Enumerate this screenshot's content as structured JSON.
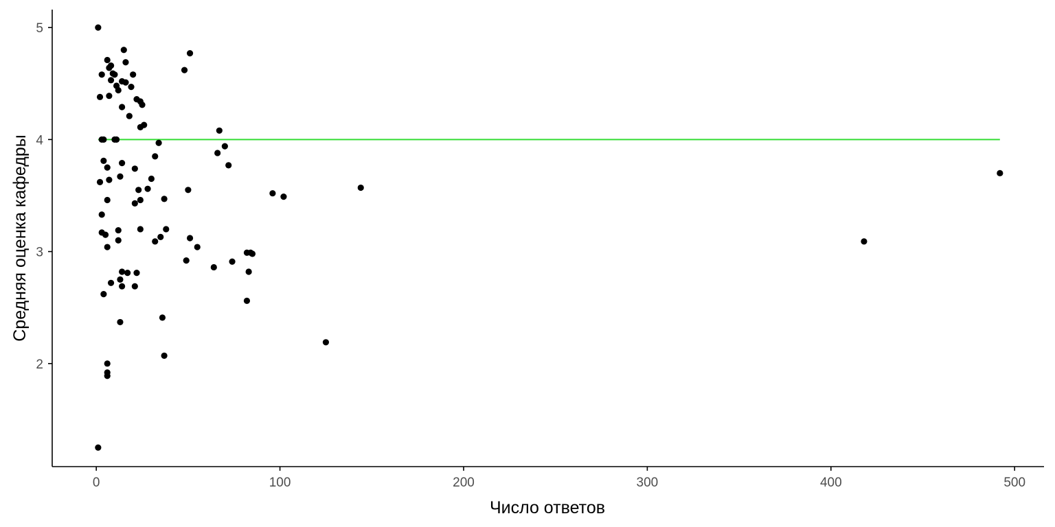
{
  "chart_data": {
    "type": "scatter",
    "xlabel": "Число ответов",
    "ylabel": "Средняя оценка кафедры",
    "xlim": [
      -24,
      516
    ],
    "ylim": [
      1.08,
      5.16
    ],
    "x_ticks": [
      0,
      100,
      200,
      300,
      400,
      500
    ],
    "y_ticks": [
      2,
      3,
      4,
      5
    ],
    "grid": false,
    "legend": "none",
    "point_color": "#000000",
    "reference_line": {
      "y": 4,
      "x_from": 1,
      "x_to": 492,
      "color": "#33dd33"
    },
    "points": [
      [
        1,
        5.0
      ],
      [
        1,
        1.25
      ],
      [
        2,
        4.38
      ],
      [
        2,
        3.62
      ],
      [
        3,
        4.0
      ],
      [
        4,
        4.0
      ],
      [
        3,
        4.58
      ],
      [
        3,
        3.33
      ],
      [
        3,
        3.17
      ],
      [
        4,
        3.81
      ],
      [
        4,
        2.62
      ],
      [
        5,
        3.15
      ],
      [
        6,
        4.71
      ],
      [
        6,
        3.75
      ],
      [
        6,
        3.04
      ],
      [
        6,
        3.46
      ],
      [
        6,
        2.0
      ],
      [
        6,
        1.92
      ],
      [
        6,
        1.89
      ],
      [
        7,
        4.64
      ],
      [
        7,
        4.39
      ],
      [
        7,
        3.64
      ],
      [
        8,
        4.66
      ],
      [
        8,
        4.53
      ],
      [
        8,
        2.72
      ],
      [
        9,
        4.59
      ],
      [
        10,
        4.58
      ],
      [
        10,
        4.0
      ],
      [
        11,
        4.0
      ],
      [
        11,
        4.48
      ],
      [
        12,
        4.44
      ],
      [
        12,
        3.19
      ],
      [
        12,
        3.1
      ],
      [
        13,
        3.67
      ],
      [
        13,
        2.75
      ],
      [
        13,
        2.37
      ],
      [
        14,
        4.52
      ],
      [
        14,
        4.29
      ],
      [
        14,
        3.79
      ],
      [
        14,
        2.82
      ],
      [
        14,
        2.69
      ],
      [
        15,
        4.8
      ],
      [
        16,
        4.69
      ],
      [
        16,
        4.51
      ],
      [
        17,
        2.81
      ],
      [
        18,
        4.21
      ],
      [
        19,
        4.47
      ],
      [
        20,
        4.58
      ],
      [
        21,
        3.74
      ],
      [
        21,
        3.43
      ],
      [
        21,
        2.69
      ],
      [
        22,
        4.36
      ],
      [
        22,
        2.81
      ],
      [
        23,
        3.55
      ],
      [
        24,
        4.34
      ],
      [
        24,
        4.11
      ],
      [
        24,
        3.46
      ],
      [
        24,
        3.2
      ],
      [
        25,
        4.31
      ],
      [
        26,
        4.13
      ],
      [
        28,
        3.56
      ],
      [
        30,
        3.65
      ],
      [
        32,
        3.85
      ],
      [
        32,
        3.09
      ],
      [
        34,
        3.97
      ],
      [
        35,
        3.13
      ],
      [
        36,
        2.41
      ],
      [
        37,
        3.47
      ],
      [
        37,
        2.07
      ],
      [
        38,
        3.2
      ],
      [
        48,
        4.62
      ],
      [
        49,
        2.92
      ],
      [
        50,
        3.55
      ],
      [
        51,
        4.77
      ],
      [
        51,
        3.12
      ],
      [
        55,
        3.04
      ],
      [
        64,
        2.86
      ],
      [
        66,
        3.88
      ],
      [
        67,
        4.08
      ],
      [
        70,
        3.94
      ],
      [
        72,
        3.77
      ],
      [
        74,
        2.91
      ],
      [
        82,
        2.99
      ],
      [
        82,
        2.56
      ],
      [
        83,
        2.82
      ],
      [
        84,
        2.99
      ],
      [
        85,
        2.98
      ],
      [
        96,
        3.52
      ],
      [
        102,
        3.49
      ],
      [
        125,
        2.19
      ],
      [
        144,
        3.57
      ],
      [
        418,
        3.09
      ],
      [
        492,
        3.7
      ]
    ]
  }
}
